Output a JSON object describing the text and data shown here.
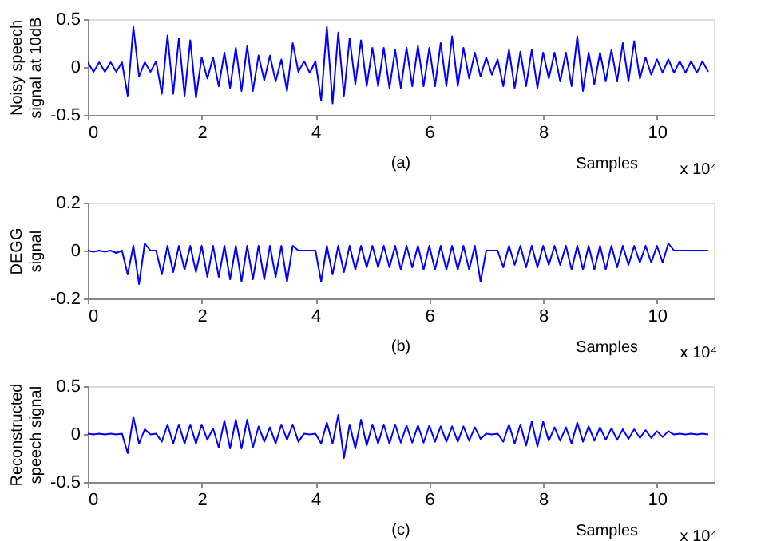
{
  "chart_data": [
    {
      "type": "line",
      "ylabel": "Noisy speech signal at 10dB",
      "xlabel": "Samples",
      "annotations": [
        "(a)",
        "x 10⁴"
      ],
      "xlim": [
        0,
        11
      ],
      "xticks": [
        0,
        2,
        4,
        6,
        8,
        10
      ],
      "ylim": [
        -0.5,
        0.5
      ],
      "yticks": [
        -0.5,
        0,
        0.5
      ],
      "grid": false,
      "legend": false,
      "marker": "none",
      "line_style": "solid",
      "x": [
        0.0,
        0.1,
        0.2,
        0.3,
        0.4,
        0.5,
        0.6,
        0.7,
        0.8,
        0.9,
        1.0,
        1.1,
        1.2,
        1.3,
        1.4,
        1.5,
        1.6,
        1.7,
        1.8,
        1.9,
        2.0,
        2.1,
        2.2,
        2.3,
        2.4,
        2.5,
        2.6,
        2.7,
        2.8,
        2.9,
        3.0,
        3.1,
        3.2,
        3.3,
        3.4,
        3.5,
        3.6,
        3.7,
        3.8,
        3.9,
        4.0,
        4.1,
        4.2,
        4.3,
        4.4,
        4.5,
        4.6,
        4.7,
        4.8,
        4.9,
        5.0,
        5.1,
        5.2,
        5.3,
        5.4,
        5.5,
        5.6,
        5.7,
        5.8,
        5.9,
        6.0,
        6.1,
        6.2,
        6.3,
        6.4,
        6.5,
        6.6,
        6.7,
        6.8,
        6.9,
        7.0,
        7.1,
        7.2,
        7.3,
        7.4,
        7.5,
        7.6,
        7.7,
        7.8,
        7.9,
        8.0,
        8.1,
        8.2,
        8.3,
        8.4,
        8.5,
        8.6,
        8.7,
        8.8,
        8.9,
        9.0,
        9.1,
        9.2,
        9.3,
        9.4,
        9.5,
        9.6,
        9.7,
        9.8,
        9.9,
        10.0,
        10.1,
        10.2,
        10.3,
        10.4,
        10.5,
        10.6,
        10.7,
        10.8,
        10.9
      ],
      "series": [
        {
          "color": "#0000ff",
          "values": [
            0.05,
            -0.05,
            0.05,
            -0.05,
            0.05,
            -0.05,
            0.05,
            -0.3,
            0.42,
            -0.1,
            0.05,
            -0.05,
            0.06,
            -0.28,
            0.33,
            -0.28,
            0.3,
            -0.3,
            0.28,
            -0.32,
            0.1,
            -0.12,
            0.1,
            -0.2,
            0.15,
            -0.22,
            0.2,
            -0.25,
            0.22,
            -0.25,
            0.12,
            -0.14,
            0.12,
            -0.15,
            0.08,
            -0.25,
            0.25,
            -0.05,
            0.06,
            -0.06,
            0.06,
            -0.35,
            0.42,
            -0.38,
            0.36,
            -0.3,
            0.3,
            -0.18,
            0.28,
            -0.2,
            0.2,
            -0.2,
            0.2,
            -0.22,
            0.18,
            -0.22,
            0.2,
            -0.2,
            0.22,
            -0.2,
            0.2,
            -0.2,
            0.25,
            -0.2,
            0.32,
            -0.2,
            0.2,
            -0.12,
            0.15,
            -0.1,
            0.1,
            -0.08,
            0.08,
            -0.2,
            0.18,
            -0.22,
            0.16,
            -0.2,
            0.18,
            -0.22,
            0.15,
            -0.12,
            0.15,
            -0.15,
            0.15,
            -0.2,
            0.32,
            -0.25,
            0.15,
            -0.18,
            0.15,
            -0.15,
            0.18,
            -0.15,
            0.25,
            -0.15,
            0.27,
            -0.12,
            0.1,
            -0.08,
            0.08,
            -0.06,
            0.08,
            -0.06,
            0.06,
            -0.06,
            0.06,
            -0.06,
            0.06,
            -0.05
          ]
        }
      ]
    },
    {
      "type": "line",
      "ylabel": "DEGG signal",
      "xlabel": "Samples",
      "annotations": [
        "(b)",
        "x 10⁴"
      ],
      "xlim": [
        0,
        11
      ],
      "xticks": [
        0,
        2,
        4,
        6,
        8,
        10
      ],
      "ylim": [
        -0.2,
        0.2
      ],
      "yticks": [
        -0.2,
        0,
        0.2
      ],
      "grid": false,
      "legend": false,
      "marker": "none",
      "line_style": "solid",
      "x": [
        0.0,
        0.1,
        0.2,
        0.3,
        0.4,
        0.5,
        0.6,
        0.7,
        0.8,
        0.9,
        1.0,
        1.1,
        1.2,
        1.3,
        1.4,
        1.5,
        1.6,
        1.7,
        1.8,
        1.9,
        2.0,
        2.1,
        2.2,
        2.3,
        2.4,
        2.5,
        2.6,
        2.7,
        2.8,
        2.9,
        3.0,
        3.1,
        3.2,
        3.3,
        3.4,
        3.5,
        3.6,
        3.7,
        3.8,
        3.9,
        4.0,
        4.1,
        4.2,
        4.3,
        4.4,
        4.5,
        4.6,
        4.7,
        4.8,
        4.9,
        5.0,
        5.1,
        5.2,
        5.3,
        5.4,
        5.5,
        5.6,
        5.7,
        5.8,
        5.9,
        6.0,
        6.1,
        6.2,
        6.3,
        6.4,
        6.5,
        6.6,
        6.7,
        6.8,
        6.9,
        7.0,
        7.1,
        7.2,
        7.3,
        7.4,
        7.5,
        7.6,
        7.7,
        7.8,
        7.9,
        8.0,
        8.1,
        8.2,
        8.3,
        8.4,
        8.5,
        8.6,
        8.7,
        8.8,
        8.9,
        9.0,
        9.1,
        9.2,
        9.3,
        9.4,
        9.5,
        9.6,
        9.7,
        9.8,
        9.9,
        10.0,
        10.1,
        10.2,
        10.3,
        10.4,
        10.5,
        10.6,
        10.7,
        10.8,
        10.9
      ],
      "series": [
        {
          "color": "#0000ff",
          "values": [
            0,
            -0.005,
            0,
            -0.005,
            0,
            -0.01,
            0,
            -0.1,
            0.02,
            -0.14,
            0.03,
            0,
            0,
            -0.1,
            0.02,
            -0.09,
            0.02,
            -0.08,
            0.02,
            -0.09,
            0.02,
            -0.11,
            0.02,
            -0.11,
            0.02,
            -0.12,
            0.02,
            -0.13,
            0.02,
            -0.12,
            0.02,
            -0.12,
            0.02,
            -0.11,
            0.02,
            -0.13,
            0.02,
            0,
            0,
            0,
            0,
            -0.13,
            0.02,
            -0.1,
            0.02,
            -0.09,
            0.02,
            -0.08,
            0.02,
            -0.07,
            0.02,
            -0.07,
            0.02,
            -0.07,
            0.02,
            -0.08,
            0.02,
            -0.07,
            0.02,
            -0.08,
            0.02,
            -0.08,
            0.02,
            -0.08,
            0.02,
            -0.08,
            0.02,
            -0.08,
            0.02,
            -0.13,
            0,
            0,
            0,
            -0.07,
            0.02,
            -0.06,
            0.02,
            -0.07,
            0.02,
            -0.07,
            0.02,
            -0.06,
            0.02,
            -0.06,
            0.02,
            -0.08,
            0.02,
            -0.08,
            0.02,
            -0.08,
            0.02,
            -0.08,
            0.02,
            -0.07,
            0.02,
            -0.06,
            0.02,
            -0.05,
            0.02,
            -0.05,
            0.02,
            -0.05,
            0.03,
            0,
            0,
            0,
            0,
            0,
            0,
            0
          ]
        }
      ]
    },
    {
      "type": "line",
      "ylabel": "Reconstructed speech signal",
      "xlabel": "Samples",
      "annotations": [
        "(c)",
        "x 10⁴"
      ],
      "xlim": [
        0,
        11
      ],
      "xticks": [
        0,
        2,
        4,
        6,
        8,
        10
      ],
      "ylim": [
        -0.5,
        0.5
      ],
      "yticks": [
        -0.5,
        0,
        0.5
      ],
      "grid": false,
      "legend": false,
      "marker": "none",
      "line_style": "solid",
      "x": [
        0.0,
        0.1,
        0.2,
        0.3,
        0.4,
        0.5,
        0.6,
        0.7,
        0.8,
        0.9,
        1.0,
        1.1,
        1.2,
        1.3,
        1.4,
        1.5,
        1.6,
        1.7,
        1.8,
        1.9,
        2.0,
        2.1,
        2.2,
        2.3,
        2.4,
        2.5,
        2.6,
        2.7,
        2.8,
        2.9,
        3.0,
        3.1,
        3.2,
        3.3,
        3.4,
        3.5,
        3.6,
        3.7,
        3.8,
        3.9,
        4.0,
        4.1,
        4.2,
        4.3,
        4.4,
        4.5,
        4.6,
        4.7,
        4.8,
        4.9,
        5.0,
        5.1,
        5.2,
        5.3,
        5.4,
        5.5,
        5.6,
        5.7,
        5.8,
        5.9,
        6.0,
        6.1,
        6.2,
        6.3,
        6.4,
        6.5,
        6.6,
        6.7,
        6.8,
        6.9,
        7.0,
        7.1,
        7.2,
        7.3,
        7.4,
        7.5,
        7.6,
        7.7,
        7.8,
        7.9,
        8.0,
        8.1,
        8.2,
        8.3,
        8.4,
        8.5,
        8.6,
        8.7,
        8.8,
        8.9,
        9.0,
        9.1,
        9.2,
        9.3,
        9.4,
        9.5,
        9.6,
        9.7,
        9.8,
        9.9,
        10.0,
        10.1,
        10.2,
        10.3,
        10.4,
        10.5,
        10.6,
        10.7,
        10.8,
        10.9
      ],
      "series": [
        {
          "color": "#0000ff",
          "values": [
            0.005,
            -0.005,
            0.005,
            -0.005,
            0.005,
            -0.005,
            0.005,
            -0.2,
            0.18,
            -0.1,
            0.05,
            -0.005,
            0.005,
            -0.08,
            0.1,
            -0.1,
            0.1,
            -0.1,
            0.1,
            -0.1,
            0.1,
            -0.06,
            0.06,
            -0.14,
            0.14,
            -0.15,
            0.15,
            -0.15,
            0.15,
            -0.14,
            0.08,
            -0.08,
            0.07,
            -0.1,
            0.1,
            -0.06,
            0.1,
            -0.08,
            0.005,
            -0.005,
            0.005,
            -0.1,
            0.12,
            -0.1,
            0.2,
            -0.25,
            0.1,
            -0.15,
            0.15,
            -0.12,
            0.1,
            -0.1,
            0.1,
            -0.1,
            0.1,
            -0.09,
            0.09,
            -0.09,
            0.09,
            -0.09,
            0.09,
            -0.08,
            0.08,
            -0.08,
            0.08,
            -0.08,
            0.08,
            -0.07,
            0.07,
            -0.05,
            0.005,
            -0.005,
            0.005,
            -0.08,
            0.1,
            -0.1,
            0.1,
            -0.12,
            0.13,
            -0.13,
            0.13,
            -0.07,
            0.07,
            -0.07,
            0.07,
            -0.1,
            0.12,
            -0.08,
            0.08,
            -0.07,
            0.07,
            -0.06,
            0.06,
            -0.06,
            0.05,
            -0.05,
            0.05,
            -0.04,
            0.04,
            -0.04,
            0.03,
            -0.03,
            0.03,
            -0.005,
            0.005,
            -0.005,
            0.005,
            -0.005,
            0.005,
            -0.005
          ]
        }
      ]
    }
  ]
}
